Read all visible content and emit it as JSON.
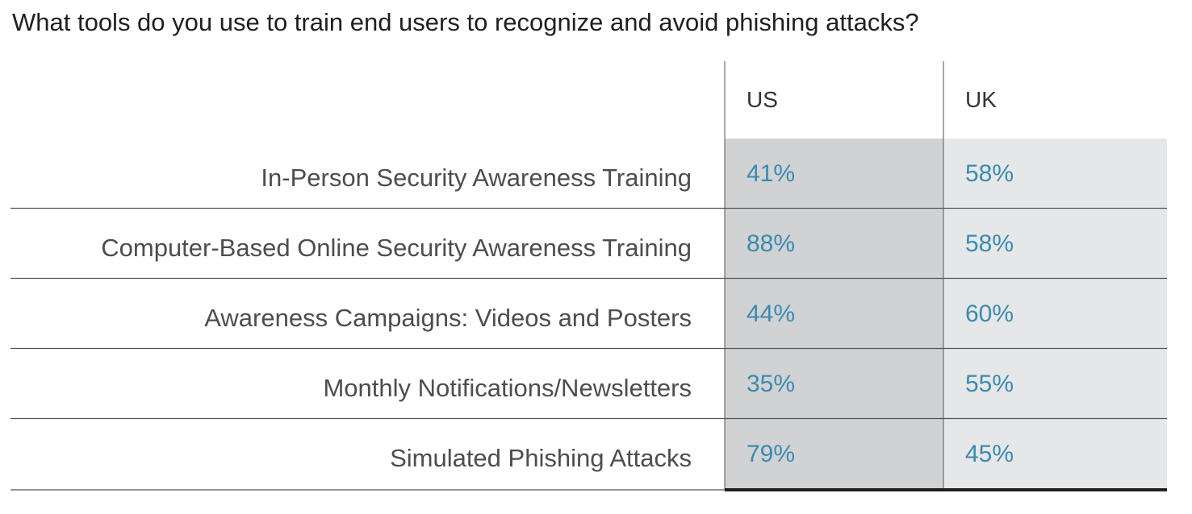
{
  "title": "What tools do you use to train end users to recognize and avoid phishing attacks?",
  "chart_data": {
    "type": "table",
    "title": "What tools do you use to train end users to recognize and avoid phishing attacks?",
    "columns": [
      "US",
      "UK"
    ],
    "rows": [
      {
        "label": "In-Person Security Awareness Training",
        "values": [
          "41%",
          "58%"
        ]
      },
      {
        "label": "Computer-Based Online Security Awareness Training",
        "values": [
          "88%",
          "58%"
        ]
      },
      {
        "label": "Awareness Campaigns: Videos and Posters",
        "values": [
          "44%",
          "60%"
        ]
      },
      {
        "label": "Monthly Notifications/Newsletters",
        "values": [
          "35%",
          "55%"
        ]
      },
      {
        "label": "Simulated Phishing Attacks",
        "values": [
          "79%",
          "45%"
        ]
      }
    ],
    "colors": {
      "us_fill": "#d1d2d4",
      "uk_fill": "#e6e7e8",
      "value_text": "#3a8bb0",
      "row_line": "#555555",
      "bottom_bar": "#231f20"
    }
  }
}
